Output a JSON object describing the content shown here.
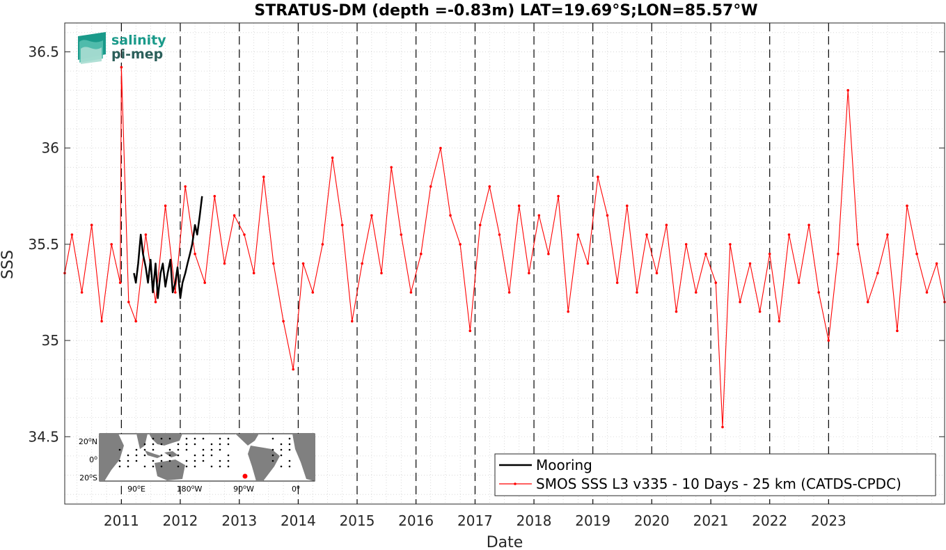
{
  "chart_data": {
    "type": "line",
    "title": "STRATUS-DM (depth =-0.83m) LAT=19.69°S;LON=85.57°W",
    "xlabel": "Date",
    "ylabel": "SSS",
    "xlim": [
      "2010-01-15",
      "2024-12-20"
    ],
    "ylim": [
      34.15,
      36.65
    ],
    "yticks": [
      34.5,
      35,
      35.5,
      36,
      36.5
    ],
    "ytick_labels": [
      "34.5",
      "35",
      "35.5",
      "36",
      "36.5"
    ],
    "xticks": [
      "2011-01-01",
      "2012-01-01",
      "2013-01-01",
      "2014-01-01",
      "2015-01-01",
      "2016-01-01",
      "2017-01-01",
      "2018-01-01",
      "2019-01-01",
      "2020-01-01",
      "2021-01-01",
      "2022-01-01",
      "2023-01-01"
    ],
    "xtick_labels": [
      "2011",
      "2012",
      "2013",
      "2014",
      "2015",
      "2016",
      "2017",
      "2018",
      "2019",
      "2020",
      "2021",
      "2022",
      "2023"
    ],
    "grid": true,
    "year_boundary_lines": "dashed black at each January 1st",
    "legend_position": "bottom-right",
    "series": [
      {
        "name": "Mooring",
        "color": "#000000",
        "style": "solid-thick",
        "x": [
          "2011-03-20",
          "2011-04-01",
          "2011-04-15",
          "2011-05-01",
          "2011-05-15",
          "2011-06-01",
          "2011-06-15",
          "2011-07-01",
          "2011-07-15",
          "2011-08-01",
          "2011-08-15",
          "2011-09-01",
          "2011-09-15",
          "2011-10-01",
          "2011-10-15",
          "2011-11-01",
          "2011-11-15",
          "2011-12-01",
          "2011-12-15",
          "2012-01-01",
          "2012-01-15",
          "2012-02-01",
          "2012-02-15",
          "2012-03-01",
          "2012-03-15",
          "2012-04-01",
          "2012-04-15",
          "2012-05-01",
          "2012-05-15"
        ],
        "y": [
          35.35,
          35.3,
          35.4,
          35.55,
          35.45,
          35.38,
          35.3,
          35.42,
          35.25,
          35.4,
          35.22,
          35.35,
          35.4,
          35.28,
          35.35,
          35.42,
          35.25,
          35.3,
          35.38,
          35.22,
          35.3,
          35.35,
          35.4,
          35.45,
          35.5,
          35.6,
          35.55,
          35.65,
          35.75
        ]
      },
      {
        "name": "SMOS SSS L3 v335 - 10 Days - 25 km (CATDS-CPDC)",
        "color": "#ff0000",
        "style": "line-with-dots",
        "x": [
          "2010-01-15",
          "2010-03-01",
          "2010-05-01",
          "2010-07-01",
          "2010-09-01",
          "2010-11-01",
          "2010-12-25",
          "2011-01-01",
          "2011-02-15",
          "2011-04-01",
          "2011-06-01",
          "2011-08-01",
          "2011-10-01",
          "2011-12-01",
          "2012-02-01",
          "2012-04-01",
          "2012-06-01",
          "2012-08-01",
          "2012-10-01",
          "2012-12-01",
          "2013-02-01",
          "2013-04-01",
          "2013-06-01",
          "2013-08-01",
          "2013-10-01",
          "2013-12-01",
          "2014-02-01",
          "2014-04-01",
          "2014-06-01",
          "2014-08-01",
          "2014-10-01",
          "2014-12-01",
          "2015-02-01",
          "2015-04-01",
          "2015-06-01",
          "2015-08-01",
          "2015-10-01",
          "2015-12-01",
          "2016-02-01",
          "2016-04-01",
          "2016-06-01",
          "2016-08-01",
          "2016-10-01",
          "2016-12-01",
          "2017-02-01",
          "2017-04-01",
          "2017-06-01",
          "2017-08-01",
          "2017-10-01",
          "2017-12-01",
          "2018-02-01",
          "2018-04-01",
          "2018-06-01",
          "2018-08-01",
          "2018-10-01",
          "2018-12-01",
          "2019-02-01",
          "2019-04-01",
          "2019-06-01",
          "2019-08-01",
          "2019-10-01",
          "2019-12-01",
          "2020-02-01",
          "2020-04-01",
          "2020-06-01",
          "2020-08-01",
          "2020-10-01",
          "2020-12-01",
          "2021-02-01",
          "2021-03-15",
          "2021-05-01",
          "2021-07-01",
          "2021-09-01",
          "2021-11-01",
          "2022-01-01",
          "2022-03-01",
          "2022-05-01",
          "2022-07-01",
          "2022-09-01",
          "2022-11-01",
          "2023-01-01",
          "2023-03-01",
          "2023-05-01",
          "2023-07-01",
          "2023-09-01",
          "2023-11-01",
          "2024-01-01",
          "2024-03-01",
          "2024-05-01",
          "2024-07-01",
          "2024-09-01",
          "2024-11-01",
          "2024-12-20"
        ],
        "y": [
          35.35,
          35.55,
          35.25,
          35.6,
          35.1,
          35.5,
          35.3,
          36.42,
          35.2,
          35.1,
          35.55,
          35.2,
          35.7,
          35.25,
          35.8,
          35.45,
          35.3,
          35.75,
          35.4,
          35.65,
          35.55,
          35.35,
          35.85,
          35.4,
          35.1,
          34.85,
          35.4,
          35.25,
          35.5,
          35.95,
          35.6,
          35.1,
          35.4,
          35.65,
          35.35,
          35.9,
          35.55,
          35.25,
          35.45,
          35.8,
          36.0,
          35.65,
          35.5,
          35.05,
          35.6,
          35.8,
          35.55,
          35.25,
          35.7,
          35.35,
          35.65,
          35.45,
          35.75,
          35.15,
          35.55,
          35.4,
          35.85,
          35.65,
          35.3,
          35.7,
          35.25,
          35.55,
          35.35,
          35.6,
          35.15,
          35.5,
          35.25,
          35.45,
          35.3,
          34.55,
          35.5,
          35.2,
          35.4,
          35.15,
          35.45,
          35.1,
          35.55,
          35.3,
          35.6,
          35.25,
          35.0,
          35.45,
          36.3,
          35.5,
          35.2,
          35.35,
          35.55,
          35.05,
          35.7,
          35.45,
          35.25,
          35.4,
          35.2
        ]
      }
    ]
  },
  "logo": {
    "line1": "salinity",
    "line2": "pi-mep"
  },
  "inset_map": {
    "lat_labels": [
      {
        "value": "20",
        "sup": "o",
        "hemi": "N"
      },
      {
        "value": "0",
        "sup": "o",
        "hemi": ""
      },
      {
        "value": "20",
        "sup": "o",
        "hemi": "S"
      }
    ],
    "lon_labels": [
      {
        "value": "90",
        "sup": "o",
        "hemi": "E"
      },
      {
        "value": "180",
        "sup": "o",
        "hemi": "W"
      },
      {
        "value": "90",
        "sup": "o",
        "hemi": "W"
      },
      {
        "value": "0",
        "sup": "o",
        "hemi": ""
      }
    ],
    "station_marker_color": "#ff0000"
  },
  "colors": {
    "mooring": "#000000",
    "smos": "#ff0000",
    "land": "#808080",
    "grid": "#d9d9d9",
    "logo_primary": "#1a9a8a",
    "logo_secondary": "#2b5f5a"
  }
}
